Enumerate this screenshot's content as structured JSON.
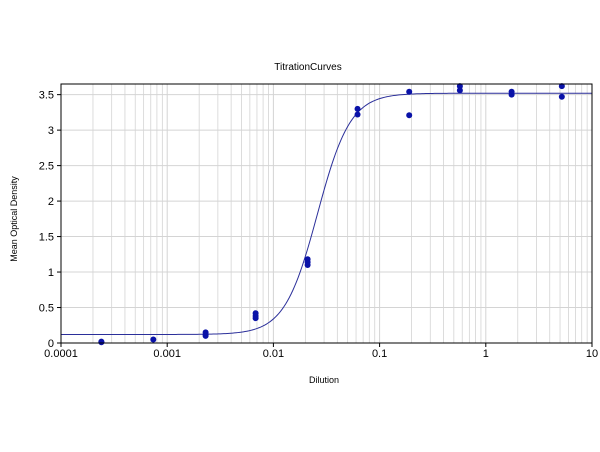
{
  "chart_data": {
    "type": "scatter",
    "title": "TitrationCurves",
    "xlabel": "Dilution",
    "ylabel": "Mean Optical Density",
    "x_scale": "log",
    "xlim": [
      0.0001,
      10
    ],
    "ylim": [
      0,
      3.65
    ],
    "grid": true,
    "legend": "none",
    "x_ticks": [
      "0.0001",
      "0.001",
      "0.01",
      "0.1",
      "1",
      "10"
    ],
    "y_ticks": [
      "0",
      "0.5",
      "1",
      "1.5",
      "2",
      "2.5",
      "3",
      "3.5"
    ],
    "colors": {
      "points": "#0a12a8",
      "curve": "#2b2f9a",
      "grid": "#d4d4d4",
      "axis": "#000000"
    },
    "series": [
      {
        "x": [
          0.00024,
          0.00024,
          0.00074,
          0.0023,
          0.0023,
          0.0023,
          0.0068,
          0.0068,
          0.0068,
          0.021,
          0.021,
          0.021,
          0.062,
          0.062,
          0.19,
          0.19,
          0.57,
          0.57,
          1.75,
          1.75,
          5.2,
          5.2
        ],
        "y": [
          0.02,
          0.01,
          0.05,
          0.15,
          0.12,
          0.1,
          0.42,
          0.38,
          0.35,
          1.18,
          1.1,
          1.14,
          3.3,
          3.22,
          3.54,
          3.21,
          3.62,
          3.56,
          3.54,
          3.5,
          3.62,
          3.47
        ]
      }
    ],
    "fit_curve": {
      "model": "4PL",
      "bottom": 0.12,
      "top": 3.52,
      "ec50": 0.026,
      "hill": 2.8
    }
  }
}
